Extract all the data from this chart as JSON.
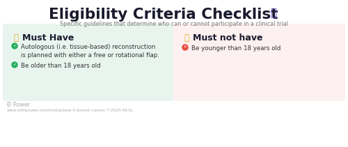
{
  "title": "Eligibility Criteria Checklist",
  "subtitle": "Specific guidelines that determine who can or cannot participate in a clinical trial",
  "bg_color": "#ffffff",
  "left_panel_bg": "#e8f5ef",
  "right_panel_bg": "#fdf0f0",
  "left_header": "Must Have",
  "right_header": "Must not have",
  "left_items": [
    "Autologous (i.e. tissue-based) reconstruction\nis planned with either a free or rotational flap.",
    "Be older than 18 years old"
  ],
  "right_items": [
    "Be younger than 18 years old"
  ],
  "footer_logo_text": "Ɖ Power",
  "footer_url": "www.withpower.com/trial/phase-5-breast-cancer-7-2025-953a",
  "footer_color": "#aaaaaa",
  "title_color": "#1a1a2e",
  "subtitle_color": "#777777",
  "header_color": "#1a1a2e",
  "item_text_color": "#333333",
  "green_icon_color": "#27ae60",
  "red_icon_color": "#e74c3c",
  "gold_color": "#e6a817",
  "clipboard_color": "#6c4fcf"
}
